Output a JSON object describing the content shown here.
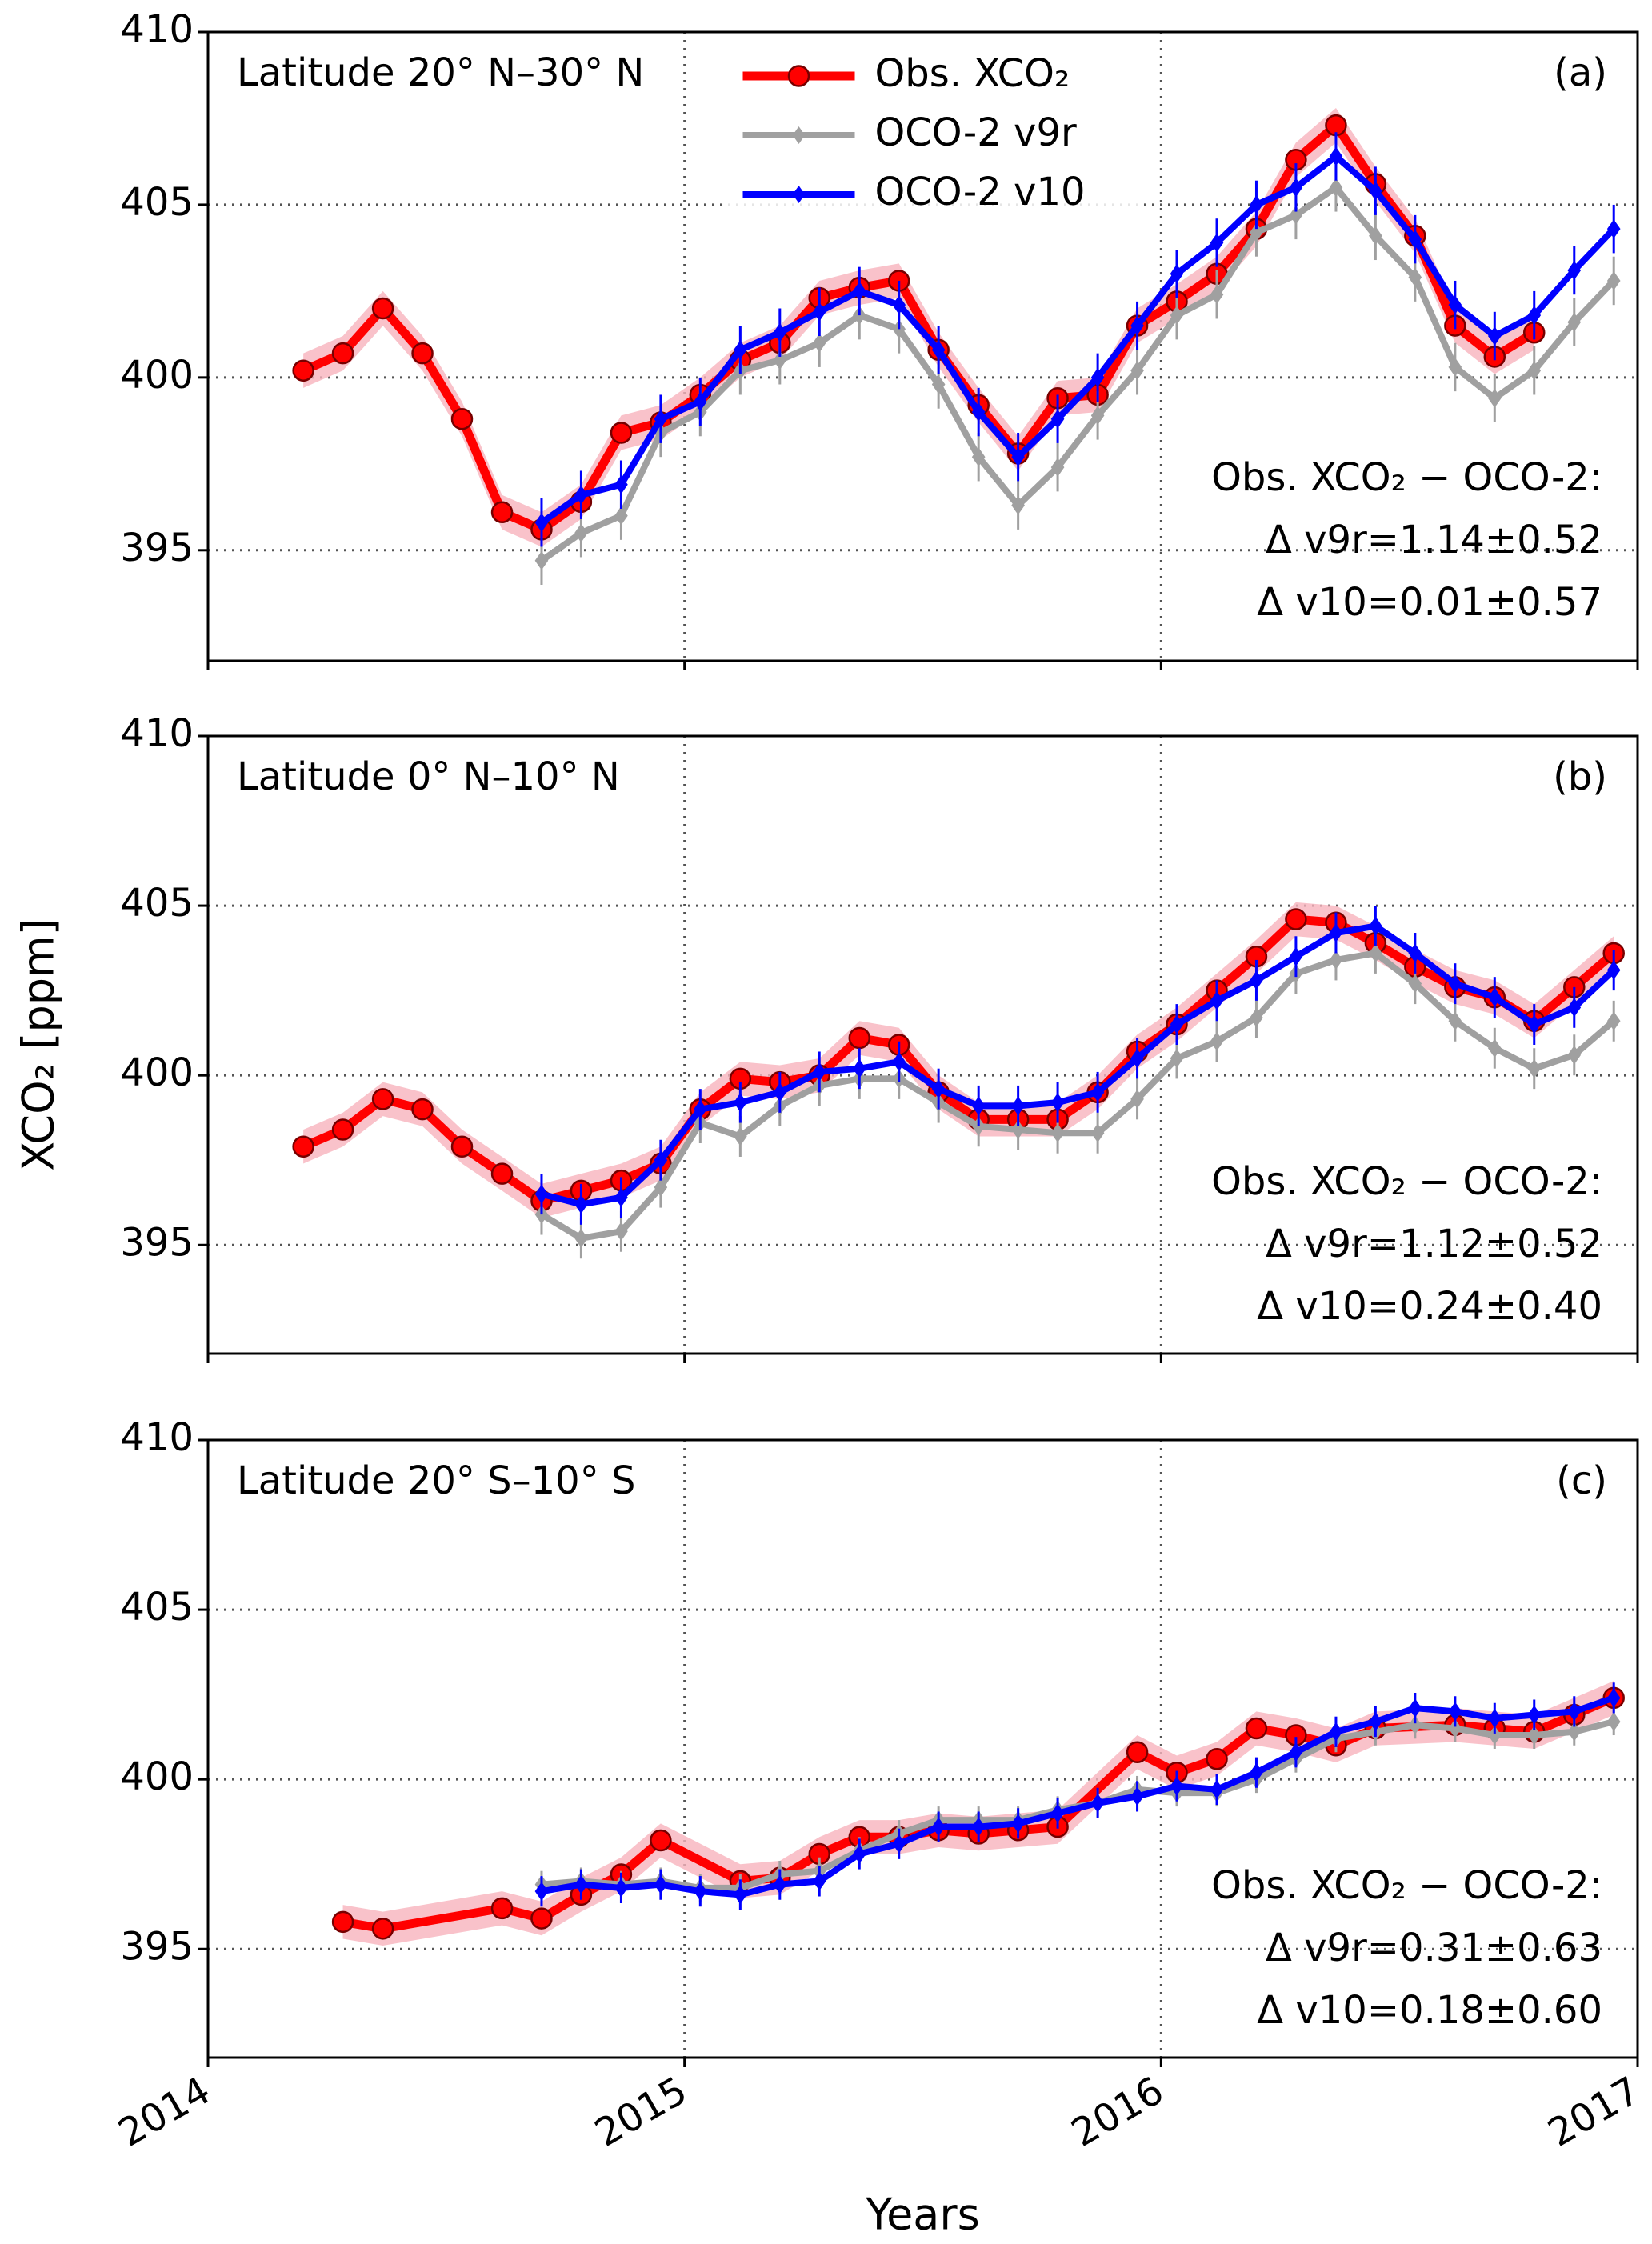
{
  "chart_data": [
    {
      "type": "line",
      "title": "Latitude 20° N–30° N",
      "label": "(a)",
      "legend": "upper center",
      "ylim": [
        391.8,
        410
      ],
      "yticks": [
        395,
        400,
        405,
        410
      ],
      "annotations": [
        "Obs. XCO₂ − OCO-2:",
        "Δ v9r=1.14±0.52",
        "Δ v10=0.01±0.57"
      ],
      "series": [
        {
          "name": "Obs. XCO₂",
          "color": "#ff0000",
          "band_color": "#f7b3bd",
          "band": 0.5,
          "x": [
            2014.2,
            2014.283,
            2014.367,
            2014.45,
            2014.533,
            2014.617,
            2014.7,
            2014.783,
            2014.867,
            2014.95,
            2015.033,
            2015.117,
            2015.2,
            2015.283,
            2015.367,
            2015.45,
            2015.533,
            2015.617,
            2015.7,
            2015.783,
            2015.867,
            2015.95,
            2016.033,
            2016.117,
            2016.2,
            2016.283,
            2016.367,
            2016.45,
            2016.533,
            2016.617,
            2016.7,
            2016.783
          ],
          "values": [
            400.2,
            400.7,
            402.0,
            400.7,
            398.8,
            396.1,
            395.6,
            396.4,
            398.4,
            398.7,
            399.5,
            400.5,
            401.0,
            402.3,
            402.6,
            402.8,
            400.8,
            399.2,
            397.8,
            399.4,
            399.5,
            401.5,
            402.2,
            403.0,
            404.3,
            406.3,
            407.3,
            405.6,
            404.1,
            401.5,
            400.6,
            401.3
          ]
        },
        {
          "name": "OCO-2 v9r",
          "color": "#a0a0a0",
          "error": 0.7,
          "x": [
            2014.7,
            2014.783,
            2014.867,
            2014.95,
            2015.033,
            2015.117,
            2015.2,
            2015.283,
            2015.367,
            2015.45,
            2015.533,
            2015.617,
            2015.7,
            2015.783,
            2015.867,
            2015.95,
            2016.033,
            2016.117,
            2016.2,
            2016.283,
            2016.367,
            2016.45,
            2016.533,
            2016.617,
            2016.7,
            2016.783,
            2016.867,
            2016.95
          ],
          "values": [
            394.7,
            395.5,
            396.0,
            398.4,
            399.0,
            400.2,
            400.5,
            401.0,
            401.8,
            401.4,
            399.8,
            397.7,
            396.3,
            397.4,
            398.9,
            400.2,
            401.8,
            402.4,
            404.2,
            404.7,
            405.5,
            404.1,
            402.9,
            400.3,
            399.4,
            400.2,
            401.6,
            402.8
          ]
        },
        {
          "name": "OCO-2 v10",
          "color": "#0000ff",
          "error": 0.7,
          "x": [
            2014.7,
            2014.783,
            2014.867,
            2014.95,
            2015.033,
            2015.117,
            2015.2,
            2015.283,
            2015.367,
            2015.45,
            2015.533,
            2015.617,
            2015.7,
            2015.783,
            2015.867,
            2015.95,
            2016.033,
            2016.117,
            2016.2,
            2016.283,
            2016.367,
            2016.45,
            2016.533,
            2016.617,
            2016.7,
            2016.783,
            2016.867,
            2016.95
          ],
          "values": [
            395.8,
            396.6,
            396.9,
            398.8,
            399.3,
            400.8,
            401.3,
            401.9,
            402.5,
            402.1,
            400.8,
            399.0,
            397.7,
            398.8,
            400.0,
            401.5,
            403.0,
            403.9,
            405.0,
            405.5,
            406.4,
            405.4,
            404.0,
            402.1,
            401.2,
            401.8,
            403.1,
            404.3
          ]
        }
      ]
    },
    {
      "type": "line",
      "title": "Latitude 0° N–10° N",
      "label": "(b)",
      "ylabel": "XCO₂ [ppm]",
      "ylim": [
        391.8,
        410
      ],
      "yticks": [
        395,
        400,
        405,
        410
      ],
      "annotations": [
        "Obs. XCO₂ − OCO-2:",
        "Δ v9r=1.12±0.52",
        "Δ v10=0.24±0.40"
      ],
      "series": [
        {
          "color": "#ff0000",
          "band_color": "#f7b3bd",
          "band": 0.5,
          "x": [
            2014.2,
            2014.283,
            2014.367,
            2014.45,
            2014.533,
            2014.617,
            2014.7,
            2014.783,
            2014.867,
            2014.95,
            2015.033,
            2015.117,
            2015.2,
            2015.283,
            2015.367,
            2015.45,
            2015.533,
            2015.617,
            2015.7,
            2015.783,
            2015.867,
            2015.95,
            2016.033,
            2016.117,
            2016.2,
            2016.283,
            2016.367,
            2016.45,
            2016.533,
            2016.617,
            2016.7,
            2016.783,
            2016.867,
            2016.95
          ],
          "values": [
            397.9,
            398.4,
            399.3,
            399.0,
            397.9,
            397.1,
            396.3,
            396.6,
            396.9,
            397.4,
            399.0,
            399.9,
            399.8,
            400.0,
            401.1,
            400.9,
            399.5,
            398.7,
            398.7,
            398.7,
            399.5,
            400.7,
            401.5,
            402.5,
            403.5,
            404.6,
            404.5,
            403.9,
            403.2,
            402.6,
            402.3,
            401.6,
            402.6,
            403.6
          ]
        },
        {
          "color": "#a0a0a0",
          "error": 0.6,
          "x": [
            2014.7,
            2014.783,
            2014.867,
            2014.95,
            2015.033,
            2015.117,
            2015.2,
            2015.283,
            2015.367,
            2015.45,
            2015.533,
            2015.617,
            2015.7,
            2015.783,
            2015.867,
            2015.95,
            2016.033,
            2016.117,
            2016.2,
            2016.283,
            2016.367,
            2016.45,
            2016.533,
            2016.617,
            2016.7,
            2016.783,
            2016.867,
            2016.95
          ],
          "values": [
            395.9,
            395.2,
            395.4,
            396.7,
            398.6,
            398.2,
            399.1,
            399.7,
            399.9,
            399.9,
            399.2,
            398.5,
            398.4,
            398.3,
            398.3,
            399.3,
            400.5,
            401.0,
            401.7,
            403.0,
            403.4,
            403.6,
            402.7,
            401.6,
            400.8,
            400.2,
            400.6,
            401.6
          ]
        },
        {
          "color": "#0000ff",
          "error": 0.6,
          "x": [
            2014.7,
            2014.783,
            2014.867,
            2014.95,
            2015.033,
            2015.117,
            2015.2,
            2015.283,
            2015.367,
            2015.45,
            2015.533,
            2015.617,
            2015.7,
            2015.783,
            2015.867,
            2015.95,
            2016.033,
            2016.117,
            2016.2,
            2016.283,
            2016.367,
            2016.45,
            2016.533,
            2016.617,
            2016.7,
            2016.783,
            2016.867,
            2016.95
          ],
          "values": [
            396.5,
            396.2,
            396.4,
            397.5,
            399.0,
            399.2,
            399.5,
            400.1,
            400.2,
            400.4,
            399.6,
            399.1,
            399.1,
            399.2,
            399.5,
            400.5,
            401.5,
            402.2,
            402.8,
            403.5,
            404.2,
            404.4,
            403.6,
            402.7,
            402.3,
            401.5,
            402.0,
            403.1
          ]
        }
      ]
    },
    {
      "type": "line",
      "title": "Latitude 20° S–10° S",
      "label": "(c)",
      "xlabel": "Years",
      "xlim": [
        2014,
        2017
      ],
      "xticks": [
        2014,
        2015,
        2016,
        2017
      ],
      "ylim": [
        391.8,
        410
      ],
      "yticks": [
        395,
        400,
        405,
        410
      ],
      "annotations": [
        "Obs. XCO₂ − OCO-2:",
        "Δ v9r=0.31±0.63",
        "Δ v10=0.18±0.60"
      ],
      "series": [
        {
          "color": "#ff0000",
          "band_color": "#f7b3bd",
          "band": 0.5,
          "x": [
            2014.283,
            2014.367,
            2014.617,
            2014.7,
            2014.783,
            2014.867,
            2014.95,
            2015.117,
            2015.2,
            2015.283,
            2015.367,
            2015.45,
            2015.533,
            2015.617,
            2015.7,
            2015.783,
            2015.95,
            2016.033,
            2016.117,
            2016.2,
            2016.283,
            2016.367,
            2016.45,
            2016.617,
            2016.7,
            2016.783,
            2016.867,
            2016.95
          ],
          "values": [
            395.8,
            395.6,
            396.2,
            395.9,
            396.6,
            397.2,
            398.2,
            397.0,
            397.1,
            397.8,
            398.3,
            398.3,
            398.5,
            398.4,
            398.5,
            398.6,
            400.8,
            400.2,
            400.6,
            401.5,
            401.3,
            401.0,
            401.5,
            401.6,
            401.5,
            401.4,
            401.9,
            402.4
          ]
        },
        {
          "color": "#a0a0a0",
          "error": 0.4,
          "x": [
            2014.7,
            2014.783,
            2014.867,
            2014.95,
            2015.033,
            2015.117,
            2015.2,
            2015.283,
            2015.367,
            2015.45,
            2015.533,
            2015.617,
            2015.7,
            2015.783,
            2015.867,
            2015.95,
            2016.033,
            2016.117,
            2016.2,
            2016.283,
            2016.367,
            2016.45,
            2016.533,
            2016.617,
            2016.7,
            2016.783,
            2016.867,
            2016.95
          ],
          "values": [
            396.9,
            397.0,
            396.9,
            397.0,
            396.8,
            396.8,
            397.2,
            397.3,
            397.9,
            398.4,
            398.8,
            398.8,
            398.8,
            399.1,
            399.3,
            399.7,
            399.6,
            399.6,
            400.0,
            400.6,
            401.2,
            401.4,
            401.6,
            401.5,
            401.3,
            401.3,
            401.4,
            401.7
          ]
        },
        {
          "color": "#0000ff",
          "error": 0.45,
          "x": [
            2014.7,
            2014.783,
            2014.867,
            2014.95,
            2015.033,
            2015.117,
            2015.2,
            2015.283,
            2015.367,
            2015.45,
            2015.533,
            2015.617,
            2015.7,
            2015.783,
            2015.867,
            2015.95,
            2016.033,
            2016.117,
            2016.2,
            2016.283,
            2016.367,
            2016.45,
            2016.533,
            2016.617,
            2016.7,
            2016.783,
            2016.867,
            2016.95
          ],
          "values": [
            396.7,
            396.9,
            396.8,
            396.9,
            396.7,
            396.6,
            396.9,
            397.0,
            397.8,
            398.1,
            398.6,
            398.6,
            398.7,
            399.0,
            399.3,
            399.5,
            399.8,
            399.7,
            400.2,
            400.8,
            401.4,
            401.7,
            402.1,
            402.0,
            401.8,
            401.9,
            402.0,
            402.4
          ]
        }
      ]
    }
  ]
}
